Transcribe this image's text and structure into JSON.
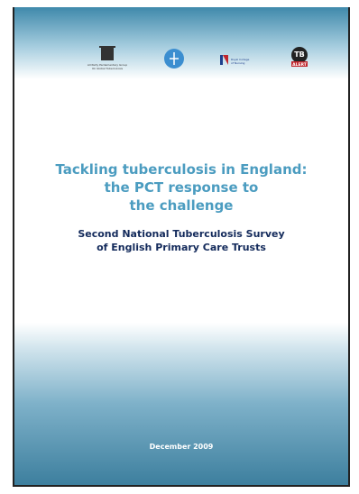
{
  "logos": {
    "appg": "All Party Parliamentary Group On Global Tuberculosis",
    "rcn": "Royal College of Nursing",
    "tb_alert": {
      "mark": "TB",
      "word": "ALERT"
    }
  },
  "title": [
    "Tackling tuberculosis in England:",
    "the PCT response to",
    "the challenge"
  ],
  "subtitle": [
    "Second National Tuberculosis Survey",
    "of English Primary Care Trusts"
  ],
  "date": "December 2009"
}
